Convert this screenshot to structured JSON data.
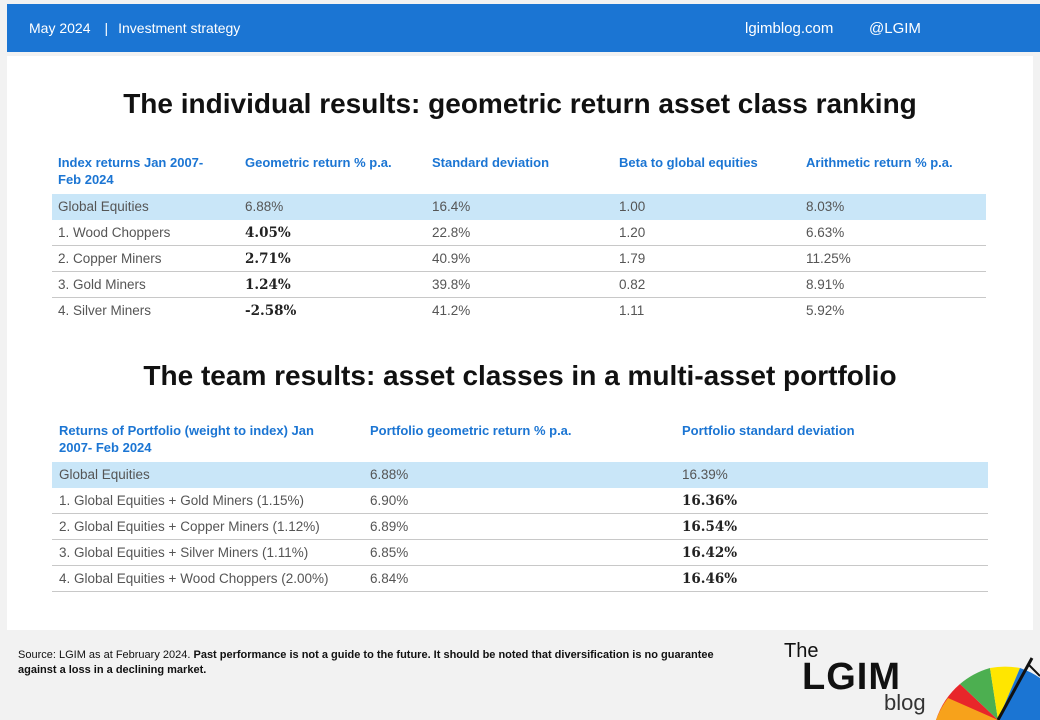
{
  "header": {
    "date": "May 2024",
    "separator": "|",
    "category": "Investment strategy",
    "site": "lgimblog.com",
    "handle": "@LGIM"
  },
  "section1": {
    "title": "The individual results: geometric return asset class ranking",
    "columns": [
      "Index returns Jan 2007- Feb 2024",
      "Geometric  return % p.a.",
      "Standard deviation",
      "Beta to global equities",
      "Arithmetic return % p.a."
    ],
    "rows": [
      {
        "name": "Global Equities",
        "geo": "6.88%",
        "sd": "16.4%",
        "beta": "1.00",
        "arith": "8.03%"
      },
      {
        "name": "1. Wood Choppers",
        "geo": "4.05%",
        "sd": "22.8%",
        "beta": "1.20",
        "arith": "6.63%"
      },
      {
        "name": "2. Copper Miners",
        "geo": "2.71%",
        "sd": "40.9%",
        "beta": "1.79",
        "arith": "11.25%"
      },
      {
        "name": "3. Gold Miners",
        "geo": "1.24%",
        "sd": "39.8%",
        "beta": "0.82",
        "arith": "8.91%"
      },
      {
        "name": "4. Silver Miners",
        "geo": "-2.58%",
        "sd": "41.2%",
        "beta": "1.11",
        "arith": "5.92%"
      }
    ]
  },
  "section2": {
    "title": "The team results: asset classes in a multi-asset portfolio",
    "columns": [
      "Returns of Portfolio (weight to index) Jan 2007- Feb 2024",
      "Portfolio geometric return % p.a.",
      "Portfolio standard deviation"
    ],
    "rows": [
      {
        "name": "Global Equities",
        "geo": "6.88%",
        "sd": "16.39%"
      },
      {
        "name": "1. Global Equities + Gold Miners (1.15%)",
        "geo": "6.90%",
        "sd": "16.36%"
      },
      {
        "name": "2. Global Equities + Copper Miners (1.12%)",
        "geo": "6.89%",
        "sd": "16.54%"
      },
      {
        "name": "3. Global Equities + Silver Miners (1.11%)",
        "geo": "6.85%",
        "sd": "16.42%"
      },
      {
        "name": "4. Global Equities + Wood Choppers (2.00%)",
        "geo": "6.84%",
        "sd": "16.46%"
      }
    ]
  },
  "footer": {
    "source": "Source: LGIM as at February 2024.",
    "disclaimer": "Past performance is not a guide to the future. It should be noted that diversification is no guarantee against a loss in a declining market."
  },
  "logo": {
    "the": "The",
    "lgim": "LGIM",
    "blog": "blog",
    "colors": [
      "#e8262a",
      "#f7a21b",
      "#ffe600",
      "#4caf50",
      "#1b75d3"
    ]
  }
}
